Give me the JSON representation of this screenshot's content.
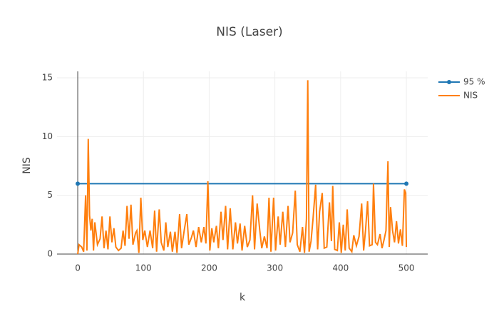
{
  "chart_data": {
    "type": "line",
    "title": "NIS (Laser)",
    "xlabel": "k",
    "ylabel": "NIS",
    "xlim": [
      -31.5,
      532.5
    ],
    "ylim": [
      0,
      15.55
    ],
    "xticks": [
      0,
      100,
      200,
      300,
      400,
      500
    ],
    "yticks": [
      0,
      5,
      10,
      15
    ],
    "grid": true,
    "legend": "right",
    "series": [
      {
        "name": "95 %",
        "color": "#1f77b4",
        "markers": true,
        "x": [
          0,
          500
        ],
        "values": [
          5.99,
          5.99
        ]
      },
      {
        "name": "NIS",
        "color": "#ff7f0e",
        "markers": false,
        "x": [
          0,
          2,
          6,
          9,
          12,
          14,
          16,
          18,
          20,
          22,
          24,
          26,
          30,
          34,
          37,
          40,
          43,
          46,
          49,
          52,
          55,
          58,
          62,
          66,
          69,
          72,
          75,
          78,
          81,
          84,
          88,
          90,
          93,
          96,
          99,
          102,
          106,
          110,
          114,
          117,
          120,
          124,
          127,
          131,
          134,
          137,
          141,
          144,
          148,
          151,
          155,
          158,
          162,
          166,
          169,
          173,
          176,
          180,
          184,
          188,
          192,
          195,
          198,
          201,
          204,
          207,
          211,
          214,
          218,
          221,
          225,
          228,
          232,
          236,
          240,
          243,
          247,
          250,
          254,
          258,
          262,
          266,
          269,
          273,
          277,
          280,
          284,
          288,
          291,
          294,
          298,
          301,
          305,
          308,
          312,
          316,
          320,
          323,
          327,
          331,
          334,
          338,
          342,
          345,
          348,
          350,
          352,
          355,
          358,
          362,
          365,
          368,
          372,
          375,
          379,
          383,
          386,
          388,
          391,
          395,
          398,
          401,
          404,
          407,
          410,
          413,
          417,
          420,
          424,
          428,
          432,
          435,
          438,
          441,
          444,
          448,
          450,
          453,
          456,
          460,
          463,
          466,
          469,
          472,
          474,
          476,
          479,
          482,
          485,
          488,
          491,
          494,
          497,
          499,
          500
        ],
        "values": [
          0,
          0.8,
          0.6,
          0.2,
          5.0,
          0.3,
          9.8,
          3.3,
          2.0,
          3.0,
          0.3,
          2.7,
          0.8,
          1.3,
          3.2,
          0.5,
          2.0,
          0.4,
          3.2,
          1.0,
          2.2,
          0.6,
          0.3,
          0.5,
          2.0,
          0.7,
          4.1,
          1.3,
          4.2,
          0.8,
          1.8,
          2.0,
          0.1,
          4.8,
          1.2,
          2.0,
          0.6,
          2.0,
          0.5,
          3.7,
          0.2,
          3.8,
          1.0,
          0.3,
          2.7,
          0.6,
          1.9,
          0.2,
          1.9,
          0.1,
          3.4,
          0.5,
          2.0,
          3.4,
          0.8,
          1.4,
          2.0,
          0.6,
          2.3,
          1.0,
          2.3,
          0.9,
          6.2,
          0.3,
          2.2,
          1.0,
          2.4,
          0.5,
          3.6,
          1.2,
          4.1,
          0.4,
          3.9,
          0.4,
          2.7,
          0.9,
          2.6,
          0.3,
          2.4,
          0.6,
          1.2,
          5.0,
          0.4,
          4.3,
          2.0,
          0.5,
          1.5,
          0.5,
          4.8,
          0.2,
          4.8,
          0.3,
          3.2,
          0.8,
          3.6,
          0.6,
          4.1,
          1.0,
          1.8,
          5.4,
          0.8,
          0.2,
          2.3,
          0.1,
          3.0,
          14.8,
          0.2,
          1.1,
          3.0,
          5.9,
          0.4,
          3.6,
          5.2,
          0.5,
          0.6,
          4.4,
          1.1,
          5.8,
          0.4,
          0.3,
          2.7,
          0.1,
          2.5,
          0.3,
          3.8,
          0.5,
          0.2,
          1.6,
          0.7,
          1.5,
          4.3,
          0.3,
          2.1,
          4.5,
          0.7,
          0.8,
          6.0,
          1.0,
          0.8,
          1.7,
          0.5,
          1.2,
          2.0,
          7.9,
          0.6,
          4.0,
          2.0,
          1.0,
          2.8,
          0.9,
          2.1,
          0.7,
          5.5,
          5.2,
          0.6
        ]
      }
    ]
  }
}
